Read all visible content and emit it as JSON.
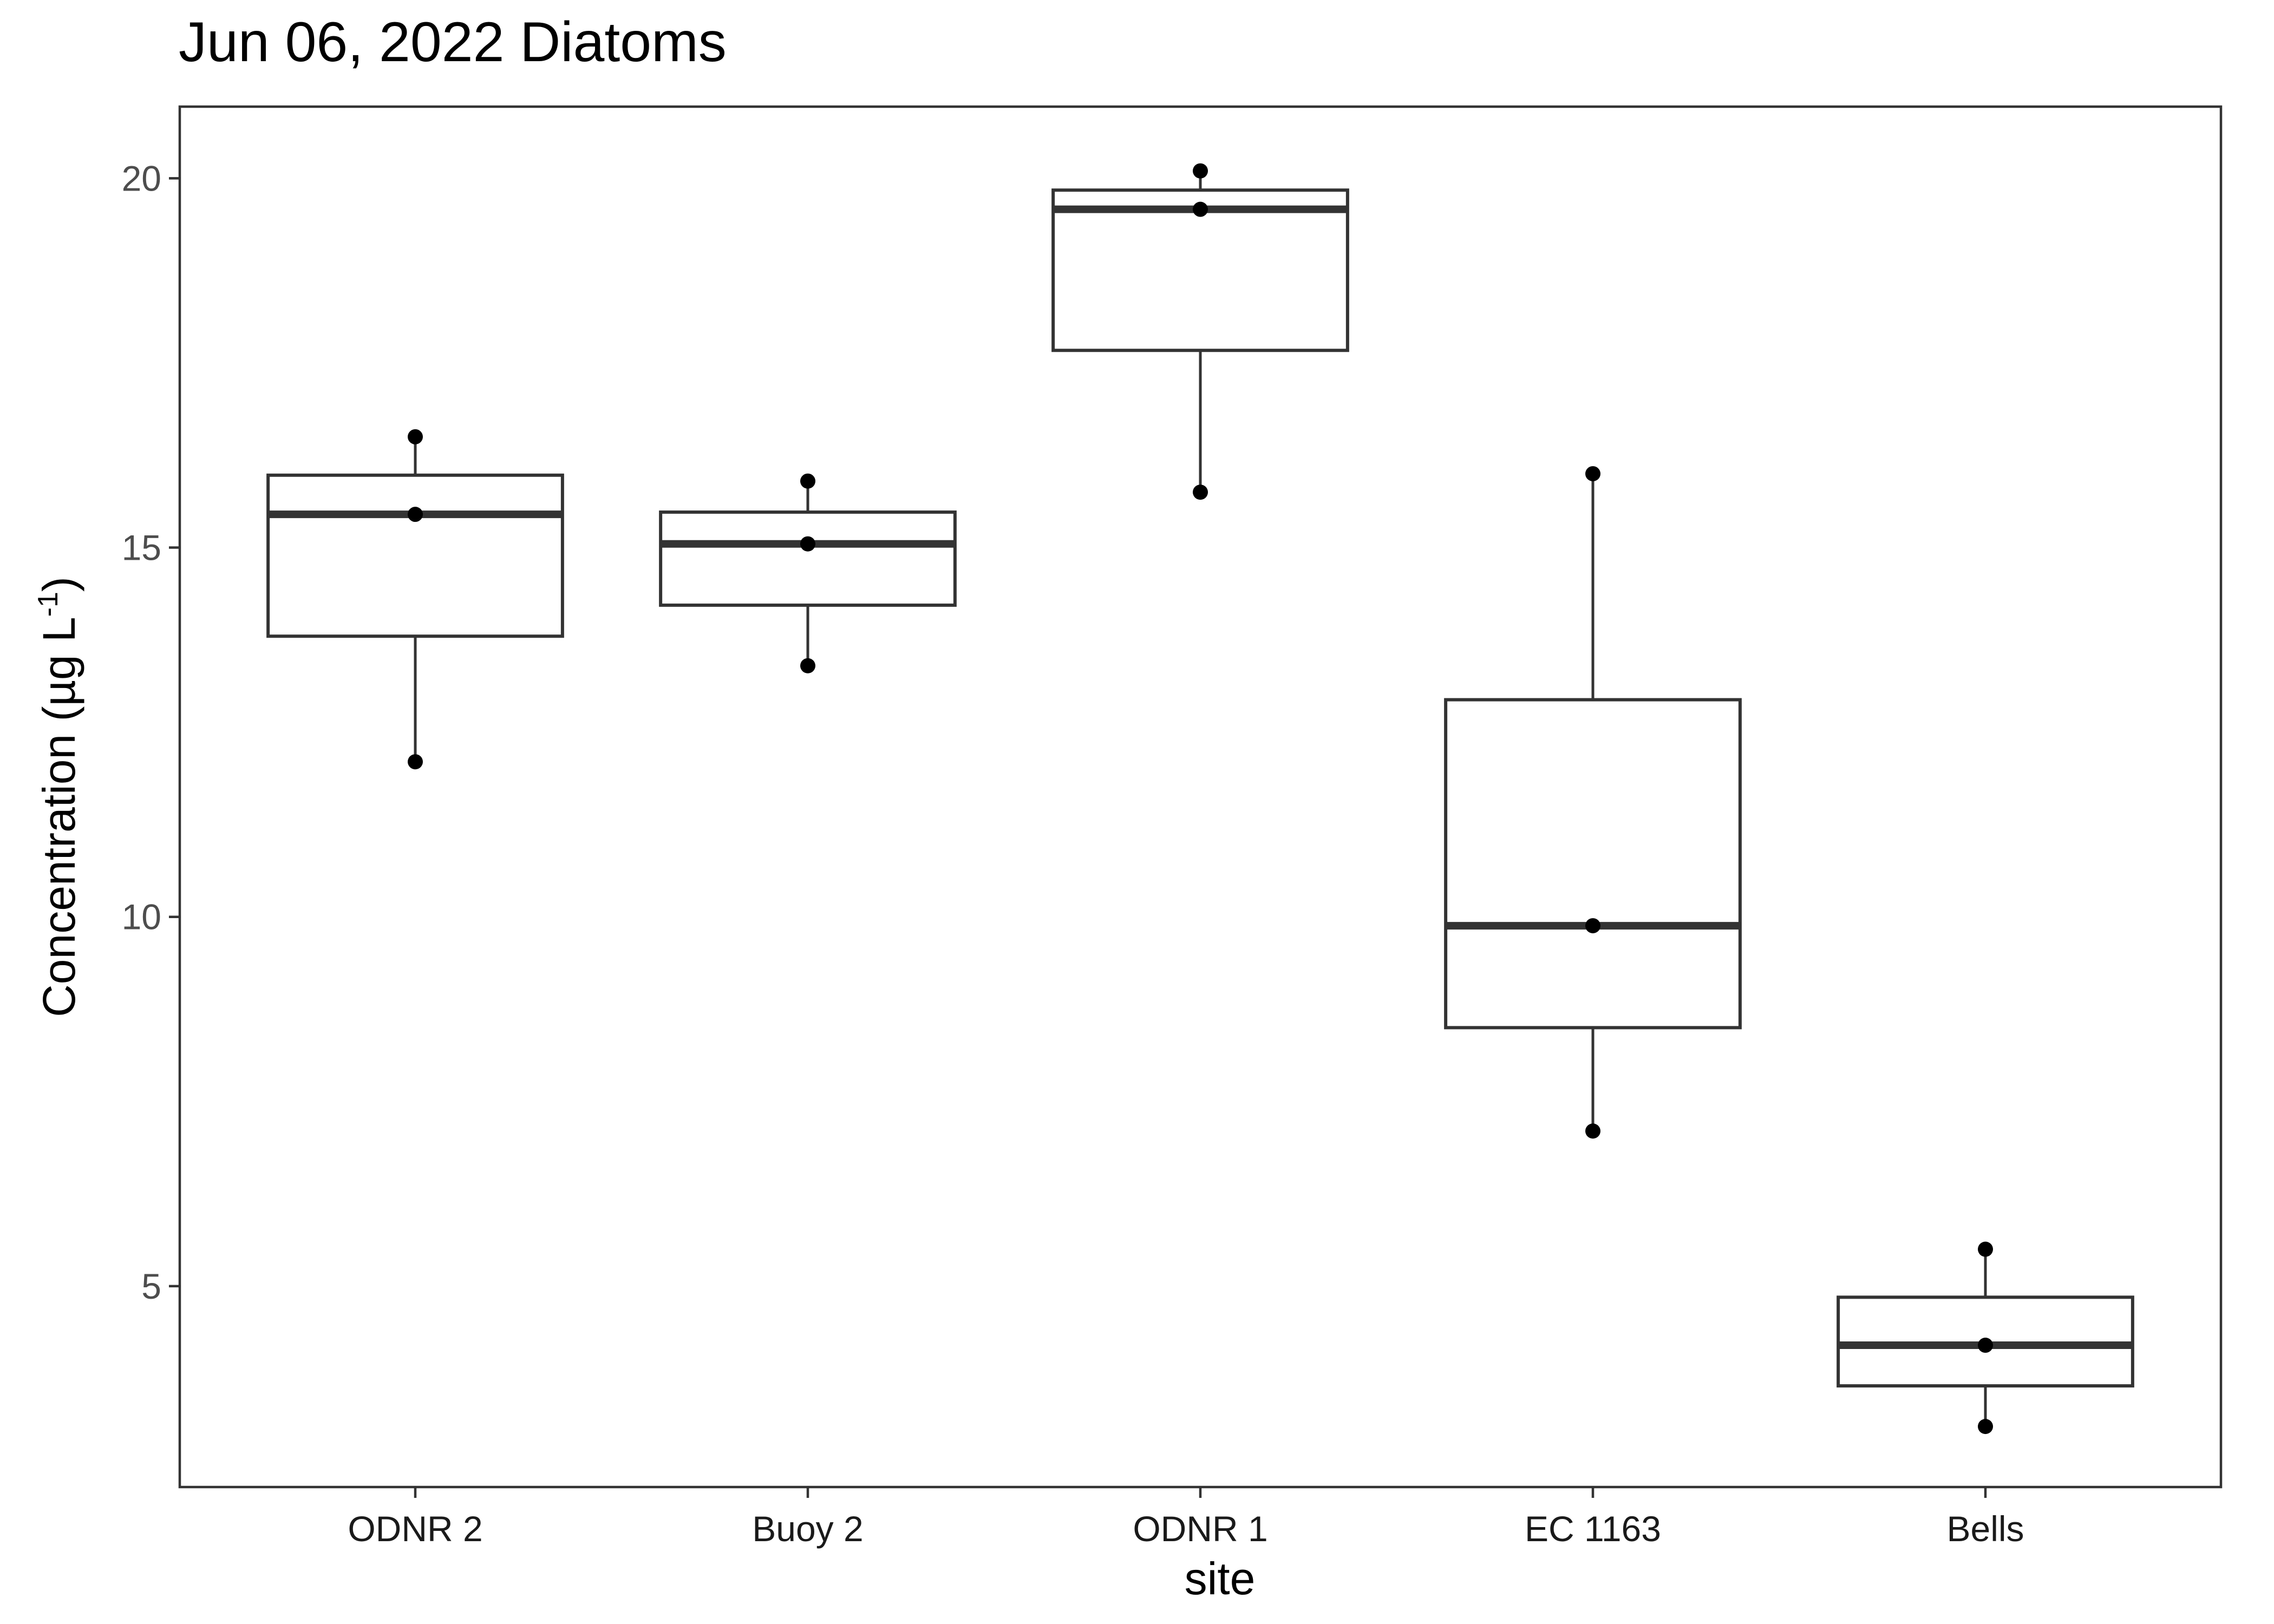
{
  "chart_data": {
    "type": "box",
    "title": "Jun 06, 2022 Diatoms",
    "xlabel": "site",
    "ylabel": "Concentration (µg L",
    "ylabel_superscript": "-1",
    "ylabel_close": ")",
    "categories": [
      "ODNR 2",
      "Buoy 2",
      "ODNR 1",
      "EC 1163",
      "Bells"
    ],
    "yticks": [
      5,
      10,
      15,
      20
    ],
    "ylim": [
      2.28,
      20.97
    ],
    "grid": false,
    "boxes": [
      {
        "category": "ODNR 2",
        "min": 12.1,
        "q1": 13.8,
        "median": 15.45,
        "q3": 15.98,
        "max": 16.5,
        "points": [
          12.1,
          15.45,
          16.5
        ]
      },
      {
        "category": "Buoy 2",
        "min": 13.4,
        "q1": 14.22,
        "median": 15.05,
        "q3": 15.48,
        "max": 15.9,
        "points": [
          13.4,
          15.05,
          15.9
        ]
      },
      {
        "category": "ODNR 1",
        "min": 15.75,
        "q1": 17.67,
        "median": 19.58,
        "q3": 19.84,
        "max": 20.1,
        "points": [
          15.75,
          19.58,
          20.1
        ]
      },
      {
        "category": "EC 1163",
        "min": 7.1,
        "q1": 8.5,
        "median": 9.88,
        "q3": 12.94,
        "max": 16.0,
        "points": [
          7.1,
          9.88,
          16.0
        ]
      },
      {
        "category": "Bells",
        "min": 3.1,
        "q1": 3.65,
        "median": 4.2,
        "q3": 4.85,
        "max": 5.5,
        "points": [
          3.1,
          4.2,
          5.5
        ]
      }
    ]
  }
}
